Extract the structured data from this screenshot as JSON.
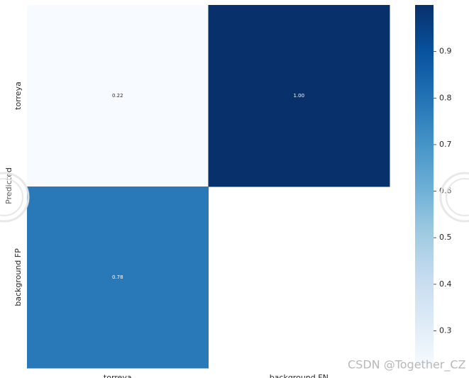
{
  "chart_data": {
    "type": "heatmap",
    "ylabel": "Predicted",
    "x_categories": [
      "torreya",
      "background FN"
    ],
    "y_categories": [
      "torreya",
      "background FP"
    ],
    "values": [
      [
        0.22,
        1.0
      ],
      [
        0.78,
        null
      ]
    ],
    "value_labels": [
      [
        "0.22",
        "1.00"
      ],
      [
        "0.78",
        null
      ]
    ],
    "cmap": "Blues",
    "clim": [
      0.22,
      1.0
    ],
    "cticks": [
      0.3,
      0.4,
      0.5,
      0.6,
      0.7,
      0.8,
      0.9
    ],
    "watermark": "CSDN @Together_CZ"
  }
}
